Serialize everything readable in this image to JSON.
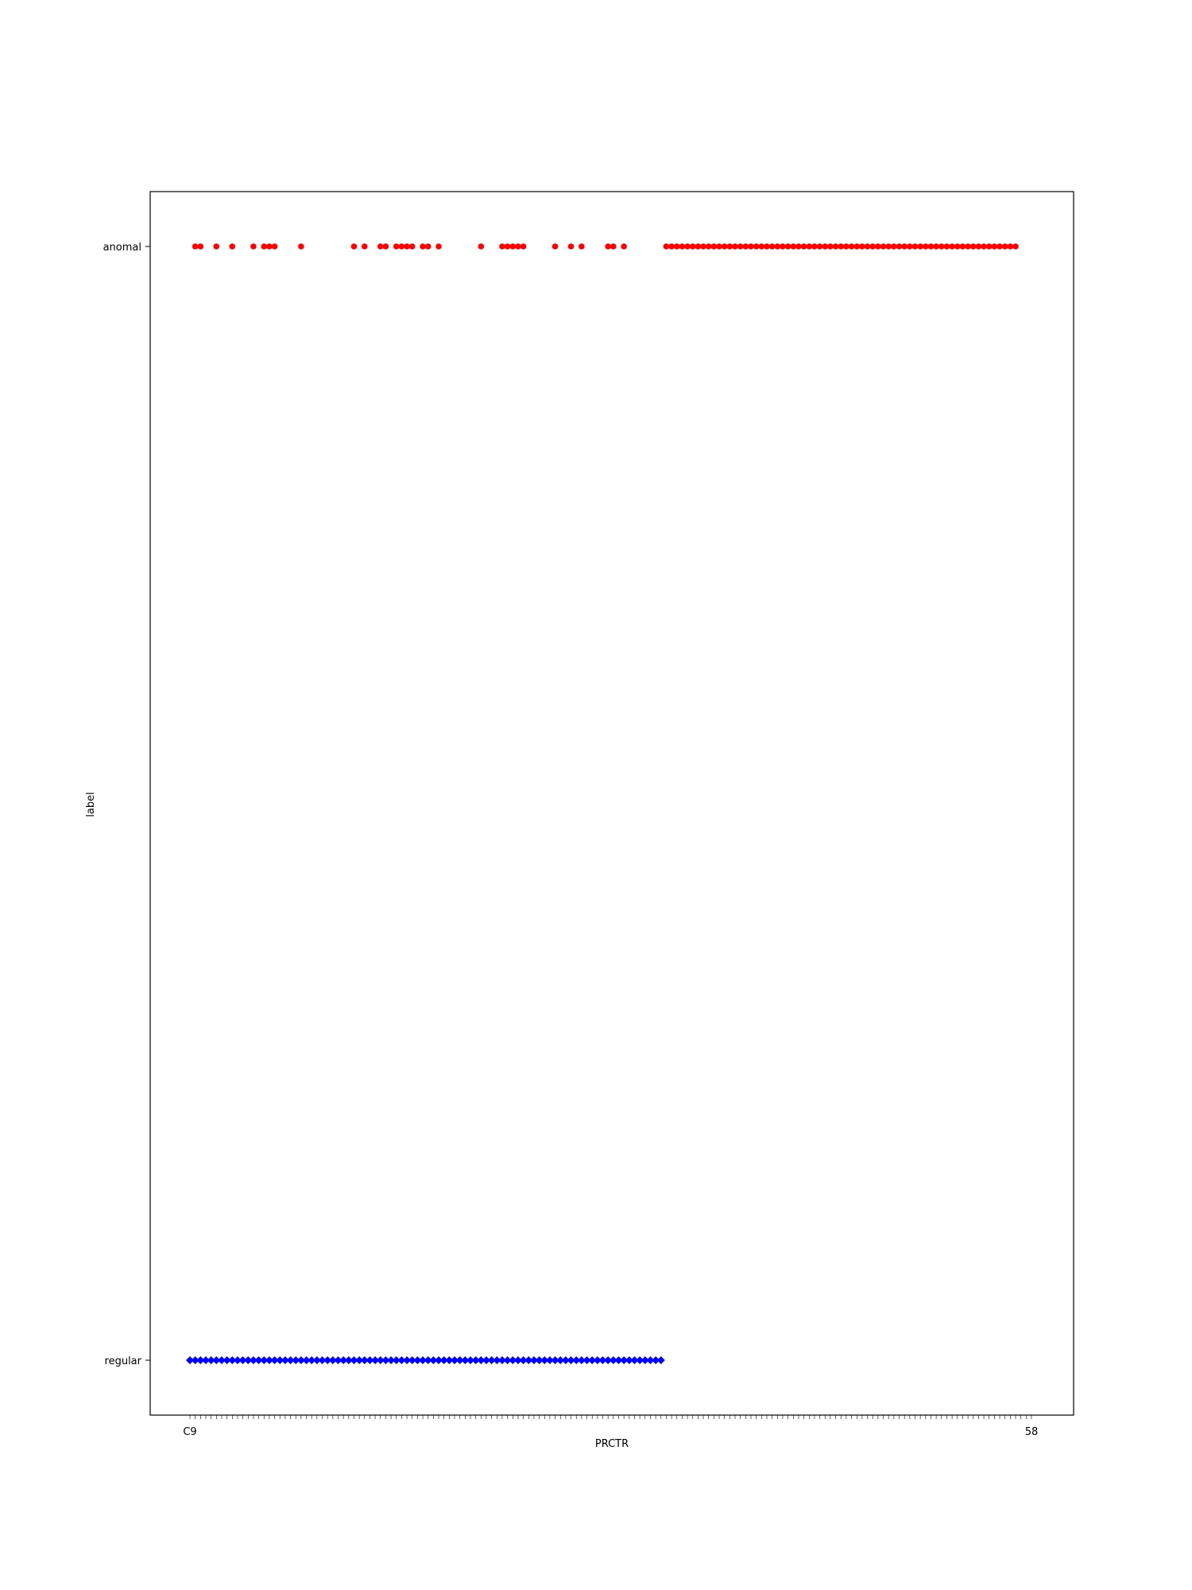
{
  "chart_data": {
    "type": "scatter",
    "title": "",
    "xlabel": "PRCTR",
    "ylabel": "label",
    "y_categories": [
      "regular",
      "anomal"
    ],
    "x_tick_count": 160,
    "x_first_tick_label": "C9",
    "x_last_tick_label": "58",
    "grid": false,
    "legend": "none",
    "series": [
      {
        "category": "regular",
        "color": "#0000ff",
        "marker": "diamond",
        "x_index_ranges": [
          [
            0,
            89
          ]
        ]
      },
      {
        "category": "anomal",
        "color": "#ff0000",
        "marker": "circle",
        "x_indices": [
          1,
          2,
          5,
          8,
          12,
          14,
          15,
          16,
          21,
          31,
          33,
          36,
          37,
          39,
          40,
          41,
          42,
          44,
          45,
          47,
          55,
          59,
          60,
          61,
          62,
          63,
          69,
          72,
          74,
          79,
          80,
          82
        ],
        "x_index_ranges": [
          [
            90,
            156
          ]
        ]
      }
    ]
  }
}
